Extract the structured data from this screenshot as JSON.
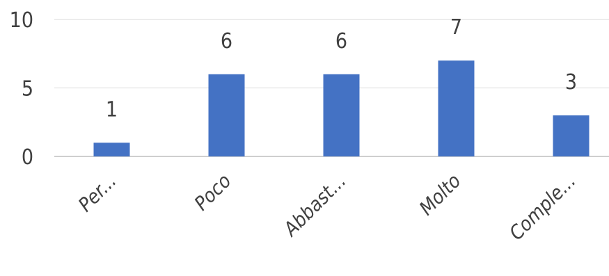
{
  "chart_data": {
    "type": "bar",
    "categories": [
      "Per...",
      "Poco",
      "Abbast...",
      "Molto",
      "Comple..."
    ],
    "values": [
      1,
      6,
      6,
      7,
      3
    ],
    "data_labels": [
      "1",
      "6",
      "6",
      "7",
      "3"
    ],
    "ylim": [
      0,
      10
    ],
    "yticks": [
      0,
      5,
      10
    ],
    "ytick_labels": [
      "0",
      "5",
      "10"
    ],
    "title": "",
    "xlabel": "",
    "ylabel": "",
    "grid": true,
    "legend": "none",
    "colors": {
      "bar": "#4472C4",
      "grid": "#D9D9D9",
      "text": "#404040"
    }
  }
}
